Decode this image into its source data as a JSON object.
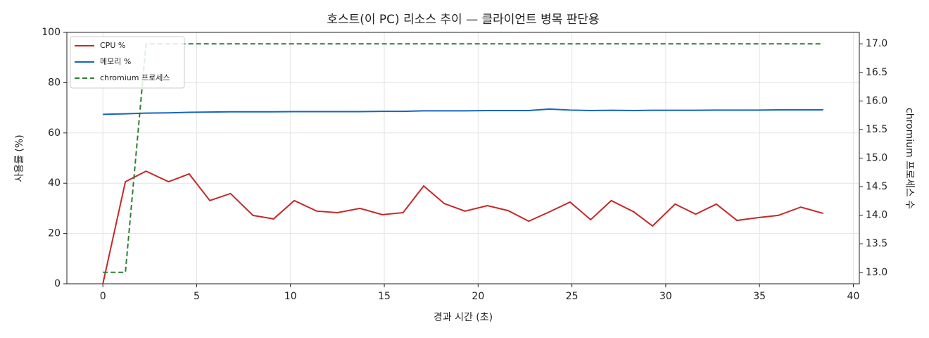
{
  "chart_data": {
    "type": "line",
    "title": "호스트(이 PC) 리소스 추이 — 클라이언트 병목 판단용",
    "x_label": "경과 시간 (초)",
    "y_label": "사용률 (%)",
    "y2_label": "chromium 프로세스 수",
    "x": [
      0,
      1.2,
      2.3,
      3.5,
      4.6,
      5.7,
      6.8,
      8.0,
      9.1,
      10.2,
      11.4,
      12.5,
      13.7,
      14.9,
      16.0,
      17.1,
      18.2,
      19.3,
      20.5,
      21.6,
      22.7,
      23.8,
      24.9,
      26.0,
      27.1,
      28.3,
      29.3,
      30.5,
      31.6,
      32.7,
      33.8,
      34.9,
      36.0,
      37.2,
      38.4
    ],
    "series": [
      {
        "name": "CPU %",
        "color": "#c62828",
        "values": [
          0,
          40.6,
          44.8,
          40.6,
          43.7,
          33.1,
          35.9,
          27.2,
          25.8,
          33.1,
          28.9,
          28.3,
          30.0,
          27.5,
          28.3,
          38.9,
          31.9,
          28.9,
          31.1,
          29.1,
          24.9,
          28.6,
          32.5,
          25.5,
          33.1,
          28.6,
          23.0,
          31.7,
          27.7,
          31.7,
          25.2,
          26.3,
          27.2,
          30.5,
          28.0
        ]
      },
      {
        "name": "메모리 %",
        "color": "#1565c0",
        "values": [
          67.4,
          67.6,
          67.9,
          68.0,
          68.2,
          68.3,
          68.4,
          68.4,
          68.4,
          68.5,
          68.5,
          68.5,
          68.5,
          68.6,
          68.6,
          68.8,
          68.8,
          68.8,
          68.9,
          68.9,
          68.9,
          69.5,
          69.1,
          68.9,
          69.0,
          68.9,
          69.0,
          69.0,
          69.0,
          69.1,
          69.1,
          69.1,
          69.2,
          69.2,
          69.2
        ]
      },
      {
        "name": "chromium 프로세스",
        "color": "#2e7d32",
        "axis": "y2",
        "linestyle": "dashed",
        "values": [
          13,
          13,
          17,
          17,
          17,
          17,
          17,
          17,
          17,
          17,
          17,
          17,
          17,
          17,
          17,
          17,
          17,
          17,
          17,
          17,
          17,
          17,
          17,
          17,
          17,
          17,
          17,
          17,
          17,
          17,
          17,
          17,
          17,
          17,
          17
        ]
      }
    ],
    "xlim": [
      -1.92,
      40.32
    ],
    "xticks": [
      0,
      5,
      10,
      15,
      20,
      25,
      30,
      35,
      40
    ],
    "ylim": [
      0,
      100
    ],
    "yticks": [
      0,
      20,
      40,
      60,
      80,
      100
    ],
    "y2lim": [
      12.8,
      17.2
    ],
    "y2ticks": [
      {
        "value": 13,
        "label": "13.0"
      },
      13.5,
      {
        "value": 14,
        "label": "14.0"
      },
      14.5,
      {
        "value": 15,
        "label": "15.0"
      },
      15.5,
      {
        "value": 16,
        "label": "16.0"
      },
      16.5,
      {
        "value": 17,
        "label": "17.0"
      }
    ],
    "grid": true,
    "legend": "upper left"
  }
}
